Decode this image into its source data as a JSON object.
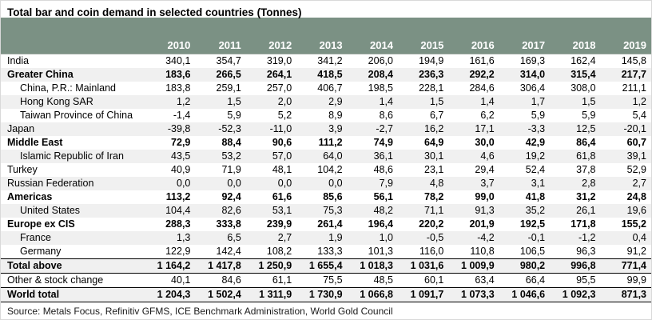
{
  "title": "Total bar and coin demand in selected countries (Tonnes)",
  "source": "Source: Metals Focus, Refinitiv GFMS, ICE Benchmark Administration, World Gold Council",
  "colors": {
    "header_bg": "#7b9184",
    "header_text": "#ffffff",
    "row_stripe": "#f0f0f0",
    "rule_dark": "#000000",
    "frame_border": "#d9d9d9"
  },
  "chart_data": {
    "type": "table",
    "title": "Total bar and coin demand in selected countries (Tonnes)",
    "columns": [
      "2010",
      "2011",
      "2012",
      "2013",
      "2014",
      "2015",
      "2016",
      "2017",
      "2018",
      "2019"
    ],
    "rows": [
      {
        "label": "India",
        "bold": false,
        "indent": false,
        "values": [
          "340,1",
          "354,7",
          "319,0",
          "341,2",
          "206,0",
          "194,9",
          "161,6",
          "169,3",
          "162,4",
          "145,8"
        ]
      },
      {
        "label": "Greater China",
        "bold": true,
        "indent": false,
        "values": [
          "183,6",
          "266,5",
          "264,1",
          "418,5",
          "208,4",
          "236,3",
          "292,2",
          "314,0",
          "315,4",
          "217,7"
        ]
      },
      {
        "label": "China, P.R.: Mainland",
        "bold": false,
        "indent": true,
        "values": [
          "183,8",
          "259,1",
          "257,0",
          "406,7",
          "198,5",
          "228,1",
          "284,6",
          "306,4",
          "308,0",
          "211,1"
        ]
      },
      {
        "label": "Hong Kong SAR",
        "bold": false,
        "indent": true,
        "values": [
          "1,2",
          "1,5",
          "2,0",
          "2,9",
          "1,4",
          "1,5",
          "1,4",
          "1,7",
          "1,5",
          "1,2"
        ]
      },
      {
        "label": "Taiwan Province of China",
        "bold": false,
        "indent": true,
        "values": [
          "-1,4",
          "5,9",
          "5,2",
          "8,9",
          "8,6",
          "6,7",
          "6,2",
          "5,9",
          "5,9",
          "5,4"
        ]
      },
      {
        "label": "Japan",
        "bold": false,
        "indent": false,
        "values": [
          "-39,8",
          "-52,3",
          "-11,0",
          "3,9",
          "-2,7",
          "16,2",
          "17,1",
          "-3,3",
          "12,5",
          "-20,1"
        ]
      },
      {
        "label": "Middle East",
        "bold": true,
        "indent": false,
        "values": [
          "72,9",
          "88,4",
          "90,6",
          "111,2",
          "74,9",
          "64,9",
          "30,0",
          "42,9",
          "86,4",
          "60,7"
        ]
      },
      {
        "label": "Islamic Republic of Iran",
        "bold": false,
        "indent": true,
        "values": [
          "43,5",
          "53,2",
          "57,0",
          "64,0",
          "36,1",
          "30,1",
          "4,6",
          "19,2",
          "61,8",
          "39,1"
        ]
      },
      {
        "label": "Turkey",
        "bold": false,
        "indent": false,
        "values": [
          "40,9",
          "71,9",
          "48,1",
          "104,2",
          "48,6",
          "23,1",
          "29,4",
          "52,4",
          "37,8",
          "52,9"
        ]
      },
      {
        "label": "Russian Federation",
        "bold": false,
        "indent": false,
        "values": [
          "0,0",
          "0,0",
          "0,0",
          "0,0",
          "7,9",
          "4,8",
          "3,7",
          "3,1",
          "2,8",
          "2,7"
        ]
      },
      {
        "label": "Americas",
        "bold": true,
        "indent": false,
        "values": [
          "113,2",
          "92,4",
          "61,6",
          "85,6",
          "56,1",
          "78,2",
          "99,0",
          "41,8",
          "31,2",
          "24,8"
        ]
      },
      {
        "label": "United States",
        "bold": false,
        "indent": true,
        "values": [
          "104,4",
          "82,6",
          "53,1",
          "75,3",
          "48,2",
          "71,1",
          "91,3",
          "35,2",
          "26,1",
          "19,6"
        ]
      },
      {
        "label": "Europe ex CIS",
        "bold": true,
        "indent": false,
        "values": [
          "288,3",
          "333,8",
          "239,9",
          "261,4",
          "196,4",
          "220,2",
          "201,9",
          "192,5",
          "171,8",
          "155,2"
        ]
      },
      {
        "label": "France",
        "bold": false,
        "indent": true,
        "values": [
          "1,3",
          "6,5",
          "2,7",
          "1,9",
          "1,0",
          "-0,5",
          "-4,2",
          "-0,1",
          "-1,2",
          "0,4"
        ]
      },
      {
        "label": "Germany",
        "bold": false,
        "indent": true,
        "values": [
          "122,9",
          "142,4",
          "108,2",
          "133,3",
          "101,3",
          "116,0",
          "110,8",
          "106,5",
          "96,3",
          "91,2"
        ]
      },
      {
        "label": "Total above",
        "bold": true,
        "indent": false,
        "border_top": true,
        "values": [
          "1 164,2",
          "1 417,8",
          "1 250,9",
          "1 655,4",
          "1 018,3",
          "1 031,6",
          "1 009,9",
          "980,2",
          "996,8",
          "771,4"
        ]
      },
      {
        "label": "Other & stock change",
        "bold": false,
        "indent": false,
        "border_top": true,
        "values": [
          "40,1",
          "84,6",
          "61,1",
          "75,5",
          "48,5",
          "60,1",
          "63,4",
          "66,4",
          "95,5",
          "99,9"
        ]
      },
      {
        "label": "World total",
        "bold": true,
        "indent": false,
        "border_top": true,
        "border_bottom": true,
        "values": [
          "1 204,3",
          "1 502,4",
          "1 311,9",
          "1 730,9",
          "1 066,8",
          "1 091,7",
          "1 073,3",
          "1 046,6",
          "1 092,3",
          "871,3"
        ]
      }
    ]
  }
}
